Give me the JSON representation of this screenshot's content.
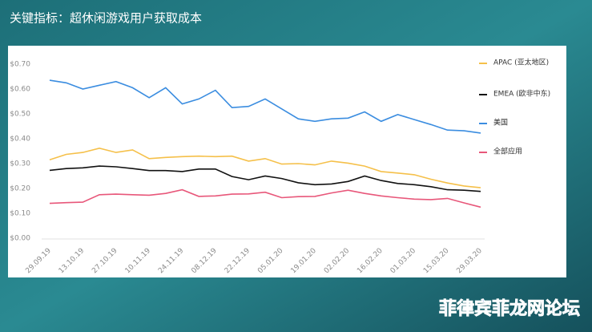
{
  "title": "关键指标：超休闲游戏用户获取成本",
  "watermark": "菲律宾菲龙网论坛",
  "chart_data": {
    "type": "line",
    "categories": [
      "29.09.19",
      null,
      "13.10.19",
      null,
      "27.10.19",
      null,
      "10.11.19",
      null,
      "24.11.19",
      null,
      "08.12.19",
      null,
      "22.12.19",
      null,
      "05.01.20",
      null,
      "19.01.20",
      null,
      "02.02.20",
      null,
      "16.02.20",
      null,
      "01.03.20",
      null,
      "15.03.20",
      null,
      "29.03.20"
    ],
    "series": [
      {
        "name": "APAC (亚太地区)",
        "color": "#f5c04a",
        "values": [
          0.315,
          0.337,
          0.345,
          0.362,
          0.345,
          0.355,
          0.32,
          0.325,
          0.328,
          0.33,
          0.328,
          0.33,
          0.31,
          0.32,
          0.298,
          0.3,
          0.295,
          0.31,
          0.302,
          0.29,
          0.268,
          0.262,
          0.255,
          0.237,
          0.222,
          0.21,
          0.203
        ]
      },
      {
        "name": "EMEA (欧非中东)",
        "color": "#111111",
        "values": [
          0.273,
          0.28,
          0.283,
          0.29,
          0.287,
          0.28,
          0.272,
          0.272,
          0.268,
          0.278,
          0.278,
          0.248,
          0.235,
          0.25,
          0.24,
          0.223,
          0.215,
          0.218,
          0.228,
          0.25,
          0.232,
          0.22,
          0.215,
          0.207,
          0.195,
          0.193,
          0.188
        ]
      },
      {
        "name": "美国",
        "color": "#3b8de0",
        "values": [
          0.635,
          0.625,
          0.6,
          0.615,
          0.63,
          0.605,
          0.565,
          0.605,
          0.54,
          0.56,
          0.595,
          0.525,
          0.53,
          0.56,
          0.52,
          0.48,
          0.47,
          0.48,
          0.483,
          0.508,
          0.47,
          0.497,
          0.477,
          0.457,
          0.435,
          0.432,
          0.423
        ]
      },
      {
        "name": "全部应用",
        "color": "#e8577a",
        "values": [
          0.14,
          0.143,
          0.145,
          0.175,
          0.177,
          0.175,
          0.173,
          0.18,
          0.195,
          0.168,
          0.17,
          0.177,
          0.178,
          0.185,
          0.163,
          0.167,
          0.168,
          0.182,
          0.193,
          0.18,
          0.17,
          0.163,
          0.157,
          0.155,
          0.16,
          0.142,
          0.125
        ]
      }
    ],
    "ylim": [
      0,
      0.7
    ],
    "yticks": [
      {
        "value": 0,
        "label": "$0.00"
      },
      {
        "value": 0.1,
        "label": "$0.10"
      },
      {
        "value": 0.2,
        "label": "$0.20"
      },
      {
        "value": 0.3,
        "label": "$0.30"
      },
      {
        "value": 0.4,
        "label": "$0.40"
      },
      {
        "value": 0.5,
        "label": "$0.50"
      },
      {
        "value": 0.6,
        "label": "$0.60"
      },
      {
        "value": 0.7,
        "label": "$0.70"
      }
    ],
    "grid": false,
    "legend": "right"
  }
}
